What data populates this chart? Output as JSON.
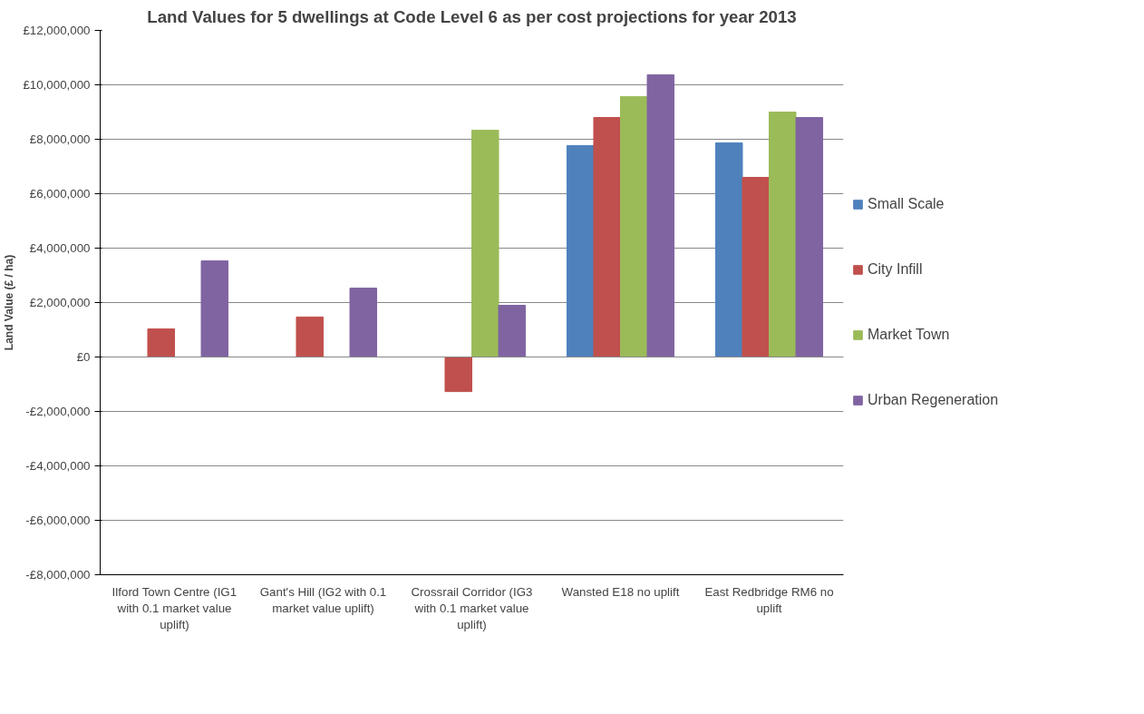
{
  "chart_data": {
    "type": "bar",
    "title": "Land Values for 5 dwellings at Code Level 6 as per cost projections for year 2013",
    "ylabel": "Land Value (£ / ha)",
    "categories": [
      "Ilford Town Centre (IG1 with 0.1 market value uplift)",
      "Gant's Hill (IG2 with 0.1 market value uplift)",
      "Crossrail Corridor (IG3 with 0.1 market value uplift)",
      "Wansted E18 no uplift",
      "East Redbridge RM6 no uplift"
    ],
    "series": [
      {
        "name": "Small Scale",
        "color": "#4f81bd",
        "values": [
          null,
          null,
          null,
          7770000,
          7870000
        ]
      },
      {
        "name": "City Infill",
        "color": "#c0504d",
        "values": [
          1030000,
          1470000,
          -1270000,
          8800000,
          6600000
        ]
      },
      {
        "name": "Market Town",
        "color": "#9bbb59",
        "values": [
          null,
          null,
          8330000,
          9570000,
          9000000
        ]
      },
      {
        "name": "Urban Regeneration",
        "color": "#8064a2",
        "values": [
          3530000,
          2530000,
          1900000,
          10370000,
          8800000
        ]
      }
    ],
    "ylim": [
      -8000000,
      12000000
    ],
    "yticks": [
      {
        "value": -8000000,
        "label": "-£8,000,000"
      },
      {
        "value": -6000000,
        "label": "-£6,000,000"
      },
      {
        "value": -4000000,
        "label": "-£4,000,000"
      },
      {
        "value": -2000000,
        "label": "-£2,000,000"
      },
      {
        "value": 0,
        "label": "£0"
      },
      {
        "value": 2000000,
        "label": "£2,000,000"
      },
      {
        "value": 4000000,
        "label": "£4,000,000"
      },
      {
        "value": 6000000,
        "label": "£6,000,000"
      },
      {
        "value": 8000000,
        "label": "£8,000,000"
      },
      {
        "value": 10000000,
        "label": "£10,000,000"
      },
      {
        "value": 12000000,
        "label": "£12,000,000"
      }
    ],
    "grid": "y",
    "legend": "right"
  }
}
